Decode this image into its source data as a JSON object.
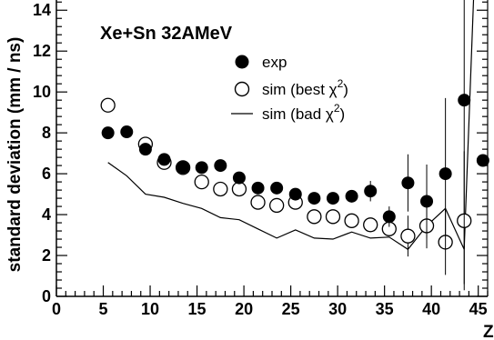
{
  "chart_data": {
    "type": "scatter",
    "title": "Xe+Sn 32AMeV",
    "xlabel": "Z",
    "ylabel": "standard deviation (mm / ns)",
    "xlim": [
      0,
      46
    ],
    "ylim": [
      0,
      14.5
    ],
    "xticks": [
      0,
      5,
      10,
      15,
      20,
      25,
      30,
      35,
      40,
      45
    ],
    "yticks": [
      0,
      2,
      4,
      6,
      8,
      10,
      12,
      14
    ],
    "grid": false,
    "legend_position": "top-right",
    "series": [
      {
        "name": "exp",
        "marker": "filled-circle",
        "x": [
          5.5,
          7.5,
          9.5,
          11.5,
          13.5,
          15.5,
          17.5,
          19.5,
          21.5,
          23.5,
          25.5,
          27.5,
          29.5,
          31.5,
          33.5,
          35.5,
          37.5,
          39.5,
          41.5,
          43.5,
          45.5
        ],
        "y": [
          8.0,
          8.05,
          7.2,
          6.7,
          6.3,
          6.3,
          6.4,
          5.8,
          5.3,
          5.3,
          5.0,
          4.8,
          4.8,
          4.9,
          5.15,
          3.9,
          5.55,
          4.65,
          6.0,
          9.6,
          6.65
        ],
        "err": [
          0.1,
          0.1,
          0.1,
          0.1,
          0.1,
          0.1,
          0.1,
          0.1,
          0.15,
          0.2,
          0.2,
          0.2,
          0.2,
          0.3,
          0.5,
          0.5,
          1.4,
          1.8,
          3.7,
          9.0,
          0.2
        ]
      },
      {
        "name": "sim (best χ²)",
        "marker": "open-circle",
        "x": [
          5.5,
          9.5,
          11.5,
          13.5,
          15.5,
          17.5,
          19.5,
          21.5,
          23.5,
          25.5,
          27.5,
          29.5,
          31.5,
          33.5,
          35.5,
          37.5,
          39.5,
          41.5,
          43.5
        ],
        "y": [
          9.35,
          7.45,
          6.55,
          6.3,
          5.6,
          5.25,
          5.25,
          4.6,
          4.45,
          4.6,
          3.9,
          3.9,
          3.7,
          3.5,
          3.3,
          2.95,
          3.45,
          2.65,
          3.7
        ],
        "err": [
          0,
          0,
          0,
          0,
          0,
          0,
          0,
          0,
          0,
          0,
          0,
          0,
          0,
          0,
          0,
          1.0,
          1.1,
          1.6,
          3.4
        ]
      },
      {
        "name": "sim (bad χ²)",
        "marker": "line",
        "x": [
          5.5,
          7.5,
          9.5,
          11.5,
          13.5,
          15.5,
          17.5,
          19.5,
          21.5,
          23.5,
          25.5,
          27.5,
          29.5,
          31.5,
          33.5,
          35.5,
          37.5,
          39.5,
          41.5,
          43.5,
          44.5
        ],
        "y": [
          6.55,
          5.9,
          5.0,
          4.85,
          4.55,
          4.3,
          3.85,
          3.75,
          3.3,
          2.85,
          3.25,
          2.85,
          2.8,
          3.15,
          2.85,
          2.9,
          2.3,
          3.45,
          4.3,
          2.3,
          14.5
        ]
      }
    ]
  },
  "legend": {
    "exp_label": "exp",
    "best_label": "sim (best χ",
    "bad_label": "sim (bad χ",
    "sup": "2",
    "close": ")"
  }
}
